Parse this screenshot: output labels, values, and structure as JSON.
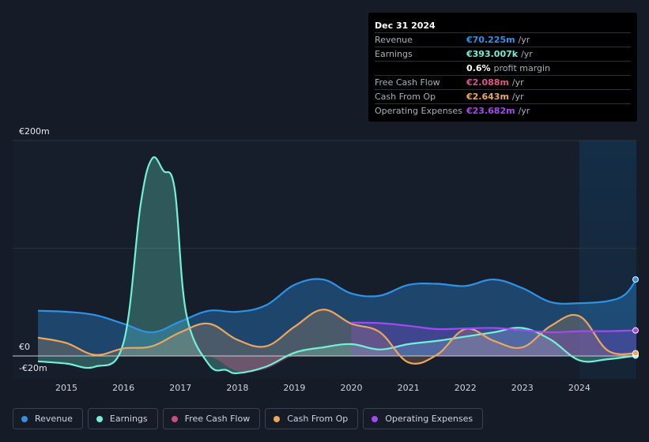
{
  "tooltip": {
    "date": "Dec 31 2024",
    "rows": [
      {
        "label": "Revenue",
        "value": "€70.225m",
        "unit": "/yr",
        "color": "#2e93e8"
      },
      {
        "label": "Earnings",
        "value": "€393.007k",
        "unit": "/yr",
        "color": "#73f0d8"
      },
      {
        "label": "",
        "value": "0.6%",
        "unit": "profit margin",
        "color": "#ffffff"
      },
      {
        "label": "Free Cash Flow",
        "value": "€2.088m",
        "unit": "/yr",
        "color": "#e0538c"
      },
      {
        "label": "Cash From Op",
        "value": "€2.643m",
        "unit": "/yr",
        "color": "#eda65c"
      },
      {
        "label": "Operating Expenses",
        "value": "€23.682m",
        "unit": "/yr",
        "color": "#a548f0"
      }
    ]
  },
  "legend": [
    {
      "label": "Revenue",
      "color": "#2e93e8"
    },
    {
      "label": "Earnings",
      "color": "#73f0d8"
    },
    {
      "label": "Free Cash Flow",
      "color": "#c94f80"
    },
    {
      "label": "Cash From Op",
      "color": "#eda65c"
    },
    {
      "label": "Operating Expenses",
      "color": "#a548f0"
    }
  ],
  "chart_data": {
    "type": "area",
    "title": "",
    "ylim": [
      -20,
      200
    ],
    "xlim": [
      2014.5,
      2025.0
    ],
    "y_tick_labels": [
      {
        "value": 200,
        "label": "€200m"
      },
      {
        "value": 0,
        "label": "€0"
      },
      {
        "value": -20,
        "label": "-€20m"
      }
    ],
    "x_tick_labels": [
      "2015",
      "2016",
      "2017",
      "2018",
      "2019",
      "2020",
      "2021",
      "2022",
      "2023",
      "2024"
    ],
    "x_ticks": [
      2015,
      2016,
      2017,
      2018,
      2019,
      2020,
      2021,
      2022,
      2023,
      2024
    ],
    "forecast_start": 2024.0,
    "series": [
      {
        "name": "Revenue",
        "color": "#2e93e8",
        "x": [
          2014.5,
          2015.0,
          2015.5,
          2016.0,
          2016.5,
          2017.0,
          2017.5,
          2018.0,
          2018.5,
          2019.0,
          2019.5,
          2020.0,
          2020.5,
          2021.0,
          2021.5,
          2022.0,
          2022.5,
          2023.0,
          2023.5,
          2024.0,
          2024.5,
          2024.8,
          2025.0
        ],
        "y": [
          42,
          41,
          38,
          30,
          22,
          32,
          42,
          41,
          47,
          66,
          71,
          58,
          56,
          66,
          67,
          65,
          71,
          63,
          50,
          49,
          51,
          57,
          71
        ]
      },
      {
        "name": "Earnings",
        "color": "#73f0d8",
        "x": [
          2014.5,
          2015.0,
          2015.5,
          2016.0,
          2016.3,
          2016.5,
          2016.7,
          2016.9,
          2017.1,
          2017.5,
          2017.8,
          2018.0,
          2018.5,
          2019.0,
          2019.5,
          2020.0,
          2020.5,
          2021.0,
          2021.5,
          2022.0,
          2022.5,
          2023.0,
          2023.5,
          2024.0,
          2024.5,
          2025.0
        ],
        "y": [
          -5,
          -7,
          -10,
          12,
          140,
          183,
          172,
          155,
          40,
          -8,
          -13,
          -16,
          -10,
          3,
          8,
          11,
          6,
          11,
          14,
          18,
          22,
          26,
          15,
          -4,
          -3,
          0.4
        ]
      },
      {
        "name": "Free Cash Flow",
        "color": "#e0538c",
        "x": [
          2014.5,
          2015.0,
          2015.5,
          2016.0,
          2016.5,
          2017.0,
          2017.5,
          2018.0,
          2018.5,
          2019.0,
          2019.5,
          2020.0,
          2020.5,
          2021.0,
          2021.5,
          2022.0,
          2022.5,
          2023.0,
          2023.5,
          2024.0,
          2024.5,
          2025.0
        ],
        "y": [
          0,
          0,
          0,
          0,
          0,
          0,
          0,
          -14,
          -12,
          0,
          0,
          0,
          0,
          0,
          0,
          0,
          0,
          0,
          0,
          0,
          0,
          2.1
        ]
      },
      {
        "name": "Cash From Op",
        "color": "#eda65c",
        "x": [
          2014.5,
          2015.0,
          2015.5,
          2016.0,
          2016.5,
          2017.0,
          2017.5,
          2018.0,
          2018.5,
          2019.0,
          2019.5,
          2020.0,
          2020.5,
          2021.0,
          2021.5,
          2022.0,
          2022.5,
          2023.0,
          2023.5,
          2024.0,
          2024.5,
          2025.0
        ],
        "y": [
          17,
          12,
          1,
          7,
          9,
          22,
          30,
          15,
          9,
          27,
          43,
          30,
          22,
          -6,
          1,
          25,
          14,
          8,
          28,
          37,
          5,
          2.6
        ]
      },
      {
        "name": "Operating Expenses",
        "color": "#a548f0",
        "x": [
          2020.0,
          2020.5,
          2021.0,
          2021.5,
          2022.0,
          2022.5,
          2023.0,
          2023.5,
          2024.0,
          2024.5,
          2025.0
        ],
        "y": [
          31,
          30.5,
          28,
          25,
          25.5,
          26,
          24,
          22,
          23,
          23,
          23.7
        ]
      }
    ]
  }
}
